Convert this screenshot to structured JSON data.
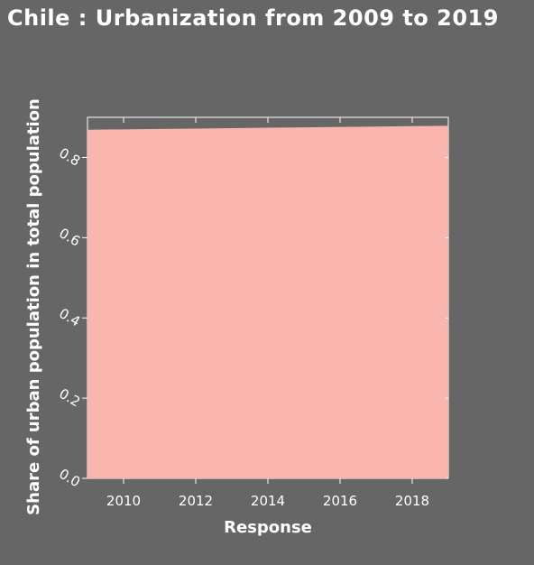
{
  "chart_data": {
    "type": "area",
    "title": "Chile : Urbanization from 2009 to 2019",
    "xlabel": "Response",
    "ylabel": "Share of urban population in total population",
    "x": [
      2009,
      2010,
      2011,
      2012,
      2013,
      2014,
      2015,
      2016,
      2017,
      2018,
      2019
    ],
    "series": [
      {
        "name": "",
        "values": [
          0.869,
          0.87,
          0.871,
          0.872,
          0.873,
          0.874,
          0.875,
          0.876,
          0.877,
          0.878,
          0.879
        ]
      }
    ],
    "xlim": [
      2009,
      2019
    ],
    "ylim": [
      0,
      0.9
    ],
    "xticks": [
      "2010",
      "2012",
      "2014",
      "2016",
      "2018"
    ],
    "yticks": [
      "0.0",
      "0.2",
      "0.4",
      "0.6",
      "0.8"
    ],
    "grid": false,
    "colors": {
      "area": "#fab5ae",
      "background": "#666666",
      "text": "#ffffff"
    }
  }
}
